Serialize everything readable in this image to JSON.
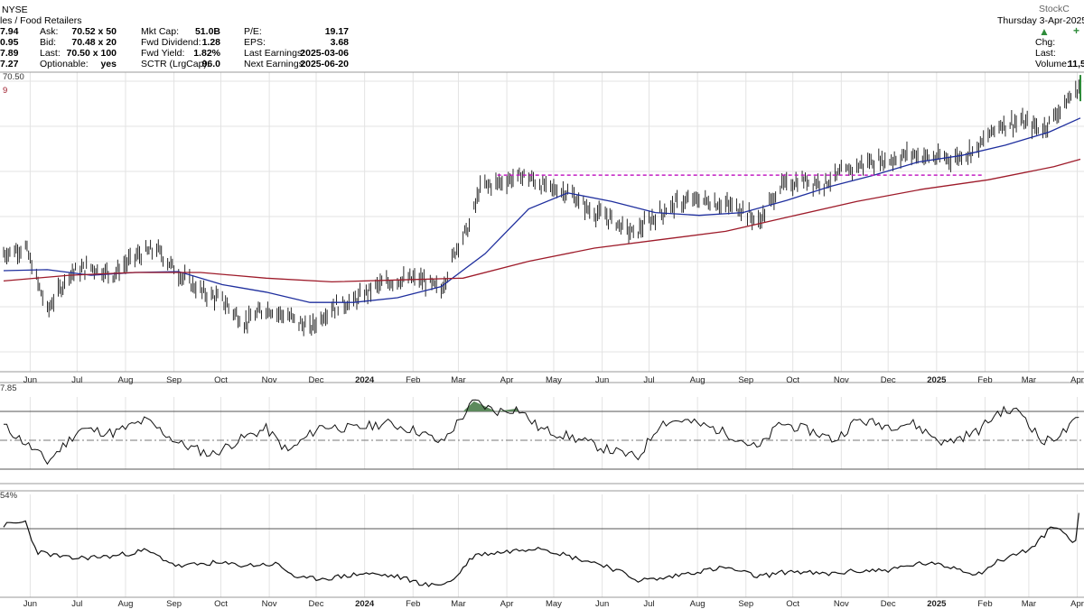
{
  "header": {
    "title_fragment": "les / Food Retailers",
    "exchange": "NYSE",
    "left_values": [
      "7.94",
      "0.95",
      "7.89",
      "7.27"
    ],
    "quote": [
      {
        "label": "Ask:",
        "value": "70.52 x 50"
      },
      {
        "label": "Bid:",
        "value": "70.48 x 20"
      },
      {
        "label": "Last:",
        "value": "70.50 x 100"
      },
      {
        "label": "Optionable:",
        "value": "yes"
      }
    ],
    "fundamentals": [
      {
        "label": "Mkt Cap:",
        "value": "51.0B"
      },
      {
        "label": "Fwd Dividend:",
        "value": "1.28"
      },
      {
        "label": "Fwd Yield:",
        "value": "1.82%"
      },
      {
        "label": "SCTR (LrgCap):",
        "value": "96.0"
      }
    ],
    "earnings": [
      {
        "label": "P/E:",
        "value": "19.17"
      },
      {
        "label": "EPS:",
        "value": "3.68"
      },
      {
        "label": "Last Earnings:",
        "value": "2025-03-06"
      },
      {
        "label": "Next Earnings:",
        "value": "2025-06-20"
      }
    ],
    "date": "Thursday  3-Apr-2025",
    "brand": "StockC",
    "right_labels": [
      "Chg:",
      "Last:",
      "Volume:"
    ],
    "volume_value": "11,5",
    "up_color": "#2e8b3a",
    "up_icon": "triangle-up-icon"
  },
  "price_legend": "70.50",
  "rsi_label": "7.85",
  "lower_label": "54%",
  "chart_data": [
    {
      "type": "ohlc",
      "panel": "price",
      "x_labels": [
        "Jun",
        "Jul",
        "Aug",
        "Sep",
        "Oct",
        "Nov",
        "Dec",
        "2024",
        "Feb",
        "Mar",
        "Apr",
        "May",
        "Jun",
        "Jul",
        "Aug",
        "Sep",
        "Oct",
        "Nov",
        "Dec",
        "2025",
        "Feb",
        "Mar",
        "Apr"
      ],
      "x_start": "2023-05-15",
      "x_end": "2025-04-03",
      "ylim": [
        40,
        72
      ],
      "series": [
        {
          "name": "",
          "kind": "close",
          "color": "#000000",
          "points": [
            [
              "2023-05-15",
              52.6
            ],
            [
              "2023-05-29",
              53.3
            ],
            [
              "2023-06-12",
              46.5
            ],
            [
              "2023-06-26",
              50.5
            ],
            [
              "2023-07-10",
              51.2
            ],
            [
              "2023-07-24",
              50.4
            ],
            [
              "2023-08-07",
              52.3
            ],
            [
              "2023-08-21",
              53.1
            ],
            [
              "2023-09-04",
              50.5
            ],
            [
              "2023-09-18",
              48.6
            ],
            [
              "2023-10-02",
              47.6
            ],
            [
              "2023-10-16",
              45.2
            ],
            [
              "2023-10-30",
              46.8
            ],
            [
              "2023-11-13",
              45.9
            ],
            [
              "2023-11-27",
              44.6
            ],
            [
              "2023-12-11",
              46.9
            ],
            [
              "2023-12-25",
              47.5
            ],
            [
              "2024-01-08",
              49.1
            ],
            [
              "2024-01-22",
              49.8
            ],
            [
              "2024-02-05",
              49.9
            ],
            [
              "2024-02-19",
              48.7
            ],
            [
              "2024-03-01",
              53.8
            ],
            [
              "2024-03-08",
              55.5
            ],
            [
              "2024-03-15",
              59.7
            ],
            [
              "2024-03-29",
              60.3
            ],
            [
              "2024-04-12",
              61.0
            ],
            [
              "2024-04-26",
              59.7
            ],
            [
              "2024-05-10",
              59.2
            ],
            [
              "2024-05-24",
              57.2
            ],
            [
              "2024-06-07",
              56.3
            ],
            [
              "2024-06-21",
              54.7
            ],
            [
              "2024-07-05",
              56.6
            ],
            [
              "2024-07-19",
              58.0
            ],
            [
              "2024-08-02",
              58.4
            ],
            [
              "2024-08-16",
              57.9
            ],
            [
              "2024-08-30",
              57.4
            ],
            [
              "2024-09-09",
              55.9
            ],
            [
              "2024-09-23",
              59.8
            ],
            [
              "2024-10-07",
              60.4
            ],
            [
              "2024-10-21",
              60.2
            ],
            [
              "2024-11-04",
              61.4
            ],
            [
              "2024-11-18",
              62.4
            ],
            [
              "2024-12-02",
              62.6
            ],
            [
              "2024-12-16",
              63.3
            ],
            [
              "2024-12-30",
              62.8
            ],
            [
              "2025-01-13",
              62.8
            ],
            [
              "2025-01-27",
              63.9
            ],
            [
              "2025-02-10",
              66.4
            ],
            [
              "2025-02-24",
              66.7
            ],
            [
              "2025-03-10",
              65.9
            ],
            [
              "2025-03-24",
              68.6
            ],
            [
              "2025-04-03",
              70.5
            ]
          ]
        },
        {
          "name": "",
          "kind": "moving-average",
          "color": "#1f2f9e",
          "points": [
            [
              "2023-05-15",
              50.8
            ],
            [
              "2023-06-12",
              50.9
            ],
            [
              "2023-07-10",
              50.3
            ],
            [
              "2023-08-07",
              50.6
            ],
            [
              "2023-09-04",
              50.7
            ],
            [
              "2023-10-02",
              49.3
            ],
            [
              "2023-10-30",
              48.5
            ],
            [
              "2023-11-27",
              47.4
            ],
            [
              "2023-12-25",
              47.4
            ],
            [
              "2024-01-22",
              47.9
            ],
            [
              "2024-02-19",
              49.1
            ],
            [
              "2024-03-18",
              52.6
            ],
            [
              "2024-04-15",
              57.4
            ],
            [
              "2024-05-10",
              59.1
            ],
            [
              "2024-06-07",
              58.2
            ],
            [
              "2024-07-05",
              57.0
            ],
            [
              "2024-08-02",
              56.7
            ],
            [
              "2024-08-30",
              57.0
            ],
            [
              "2024-09-27",
              58.3
            ],
            [
              "2024-10-25",
              59.8
            ],
            [
              "2024-11-22",
              61.0
            ],
            [
              "2024-12-20",
              62.4
            ],
            [
              "2025-01-17",
              63.1
            ],
            [
              "2025-02-14",
              64.2
            ],
            [
              "2025-03-14",
              65.6
            ],
            [
              "2025-04-03",
              67.1
            ]
          ]
        },
        {
          "name": "",
          "kind": "moving-average",
          "color": "#9e1b2a",
          "points": [
            [
              "2023-05-15",
              49.7
            ],
            [
              "2023-06-26",
              50.3
            ],
            [
              "2023-08-07",
              50.6
            ],
            [
              "2023-09-18",
              50.6
            ],
            [
              "2023-10-30",
              50.0
            ],
            [
              "2023-12-11",
              49.6
            ],
            [
              "2024-01-22",
              49.8
            ],
            [
              "2024-03-04",
              50.0
            ],
            [
              "2024-04-15",
              51.8
            ],
            [
              "2024-05-27",
              53.2
            ],
            [
              "2024-07-08",
              54.1
            ],
            [
              "2024-08-19",
              55.0
            ],
            [
              "2024-09-30",
              56.6
            ],
            [
              "2024-11-11",
              58.2
            ],
            [
              "2024-12-23",
              59.5
            ],
            [
              "2025-02-03",
              60.5
            ],
            [
              "2025-03-17",
              61.9
            ],
            [
              "2025-04-03",
              62.7
            ]
          ]
        }
      ],
      "annotations": [
        {
          "type": "horizontal-segment",
          "y": 61.0,
          "x_from": "2024-03-26",
          "x_to": "2025-01-31",
          "color": "#c21fc2",
          "style": "dashed"
        }
      ]
    },
    {
      "type": "line",
      "panel": "rsi",
      "ylim": [
        30,
        80
      ],
      "reference_lines": [
        {
          "y": 70,
          "style": "solid",
          "color": "#555555"
        },
        {
          "y": 50,
          "style": "dashdot",
          "color": "#777777"
        },
        {
          "y": 30,
          "style": "solid",
          "color": "#555555"
        }
      ],
      "overbought_fill": "#5d8a5d",
      "series": [
        {
          "name": "",
          "color": "#000000",
          "points": [
            [
              "2023-05-15",
              60
            ],
            [
              "2023-06-05",
              42
            ],
            [
              "2023-06-12",
              35
            ],
            [
              "2023-07-03",
              58
            ],
            [
              "2023-07-24",
              55
            ],
            [
              "2023-08-14",
              64
            ],
            [
              "2023-09-04",
              48
            ],
            [
              "2023-09-25",
              40
            ],
            [
              "2023-10-16",
              52
            ],
            [
              "2023-10-30",
              58
            ],
            [
              "2023-11-13",
              42
            ],
            [
              "2023-12-04",
              60
            ],
            [
              "2023-12-25",
              58
            ],
            [
              "2024-01-15",
              62
            ],
            [
              "2024-02-05",
              56
            ],
            [
              "2024-02-19",
              48
            ],
            [
              "2024-03-04",
              67
            ],
            [
              "2024-03-11",
              77
            ],
            [
              "2024-03-25",
              70
            ],
            [
              "2024-04-08",
              72
            ],
            [
              "2024-04-22",
              58
            ],
            [
              "2024-05-13",
              52
            ],
            [
              "2024-06-03",
              44
            ],
            [
              "2024-06-24",
              38
            ],
            [
              "2024-07-08",
              62
            ],
            [
              "2024-07-22",
              64
            ],
            [
              "2024-08-12",
              58
            ],
            [
              "2024-08-26",
              52
            ],
            [
              "2024-09-09",
              44
            ],
            [
              "2024-09-23",
              62
            ],
            [
              "2024-10-14",
              56
            ],
            [
              "2024-10-28",
              50
            ],
            [
              "2024-11-11",
              64
            ],
            [
              "2024-12-02",
              60
            ],
            [
              "2024-12-16",
              62
            ],
            [
              "2025-01-06",
              48
            ],
            [
              "2025-01-27",
              56
            ],
            [
              "2025-02-10",
              70
            ],
            [
              "2025-02-24",
              70
            ],
            [
              "2025-03-10",
              48
            ],
            [
              "2025-03-24",
              56
            ],
            [
              "2025-04-03",
              66
            ]
          ]
        }
      ]
    },
    {
      "type": "line",
      "panel": "lower",
      "reference_lines": [
        {
          "y": 0.0,
          "style": "solid",
          "color": "#555555"
        }
      ],
      "ylim": [
        -6,
        3
      ],
      "series": [
        {
          "name": "",
          "color": "#000000",
          "points": [
            [
              "2023-05-15",
              0.3
            ],
            [
              "2023-05-29",
              0.6
            ],
            [
              "2023-06-05",
              -2.0
            ],
            [
              "2023-06-26",
              -2.6
            ],
            [
              "2023-07-24",
              -2.4
            ],
            [
              "2023-08-14",
              -1.9
            ],
            [
              "2023-09-04",
              -3.3
            ],
            [
              "2023-09-25",
              -3.0
            ],
            [
              "2023-10-16",
              -3.2
            ],
            [
              "2023-11-06",
              -3.1
            ],
            [
              "2023-11-20",
              -4.4
            ],
            [
              "2023-12-11",
              -4.3
            ],
            [
              "2024-01-01",
              -3.9
            ],
            [
              "2024-01-22",
              -4.2
            ],
            [
              "2024-02-12",
              -5.0
            ],
            [
              "2024-02-26",
              -4.6
            ],
            [
              "2024-03-11",
              -2.3
            ],
            [
              "2024-04-01",
              -2.0
            ],
            [
              "2024-04-22",
              -1.6
            ],
            [
              "2024-05-13",
              -2.5
            ],
            [
              "2024-06-03",
              -3.2
            ],
            [
              "2024-06-24",
              -4.5
            ],
            [
              "2024-07-08",
              -4.4
            ],
            [
              "2024-07-29",
              -3.8
            ],
            [
              "2024-08-19",
              -3.4
            ],
            [
              "2024-09-09",
              -4.2
            ],
            [
              "2024-09-30",
              -3.7
            ],
            [
              "2024-10-21",
              -4.0
            ],
            [
              "2024-11-11",
              -3.7
            ],
            [
              "2024-12-02",
              -3.6
            ],
            [
              "2024-12-23",
              -3.0
            ],
            [
              "2025-01-13",
              -3.4
            ],
            [
              "2025-01-27",
              -4.0
            ],
            [
              "2025-02-10",
              -2.8
            ],
            [
              "2025-03-03",
              -1.7
            ],
            [
              "2025-03-17",
              0.3
            ],
            [
              "2025-03-31",
              -1.2
            ],
            [
              "2025-04-03",
              2.7
            ]
          ]
        }
      ]
    }
  ]
}
